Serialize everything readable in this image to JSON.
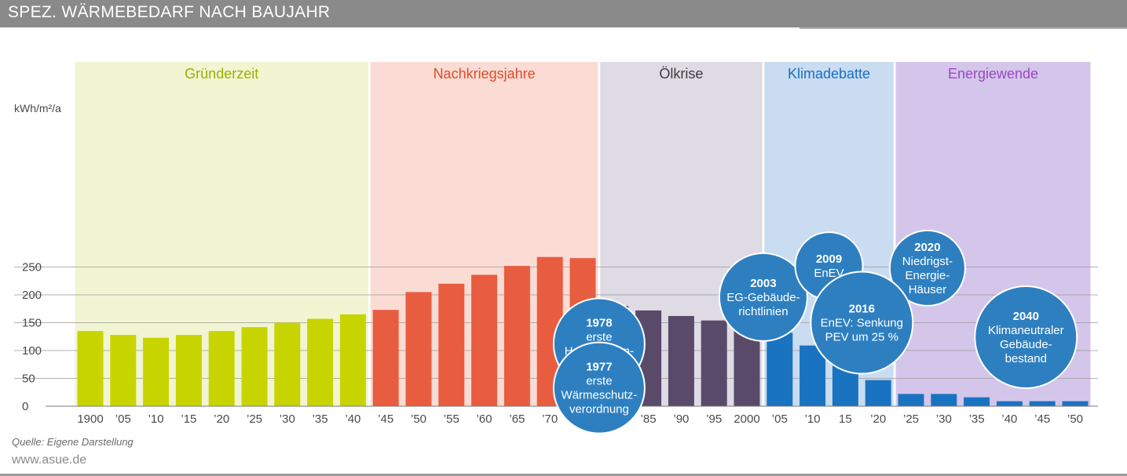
{
  "header": {
    "title": "SPEZ. WÄRMEBEDARF NACH BAUJAHR"
  },
  "chart_data": {
    "type": "bar",
    "title": "SPEZ. WÄRMEBEDARF NACH BAUJAHR",
    "ylabel": "kWh/m²/a",
    "xlabel": "",
    "ylim": [
      0,
      270
    ],
    "yticks": [
      0,
      50,
      100,
      150,
      200,
      250
    ],
    "grid": true,
    "categories": [
      "1900",
      "’05",
      "’10",
      "’15",
      "’20",
      "’25",
      "’30",
      "’35",
      "’40",
      "’45",
      "’50",
      "’55",
      "’60",
      "’65",
      "’70",
      "’75",
      "’80",
      "’85",
      "’90",
      "’95",
      "2000",
      "’05",
      "’10",
      "15",
      "’20",
      "’25",
      "’30",
      "’35",
      "’40",
      "’45",
      "’50"
    ],
    "values": [
      135,
      128,
      123,
      128,
      135,
      142,
      150,
      157,
      165,
      173,
      205,
      220,
      236,
      252,
      268,
      266,
      180,
      172,
      162,
      154,
      148,
      132,
      109,
      80,
      47,
      22,
      22,
      16,
      9,
      9,
      9
    ],
    "bar_colors": [
      "#c8d400",
      "#c8d400",
      "#c8d400",
      "#c8d400",
      "#c8d400",
      "#c8d400",
      "#c8d400",
      "#c8d400",
      "#c8d400",
      "#e85d40",
      "#e85d40",
      "#e85d40",
      "#e85d40",
      "#e85d40",
      "#e85d40",
      "#e85d40",
      "#5a4a6a",
      "#5a4a6a",
      "#5a4a6a",
      "#5a4a6a",
      "#5a4a6a",
      "#1a73c0",
      "#1a73c0",
      "#1a73c0",
      "#1a73c0",
      "#1a73c0",
      "#1a73c0",
      "#1a73c0",
      "#1a73c0",
      "#1a73c0",
      "#1a73c0"
    ],
    "periods": [
      {
        "label": "Gründerzeit",
        "from": 0,
        "to": 8,
        "bg": "#f1f5d2",
        "text_color": "#9ab000"
      },
      {
        "label": "Nachkriegsjahre",
        "from": 9,
        "to": 15,
        "bg": "#fbdcd4",
        "text_color": "#e04a2c"
      },
      {
        "label": "Ölkrise",
        "from": 16,
        "to": 20,
        "bg": "#dedbe4",
        "text_color": "#3c3c3c"
      },
      {
        "label": "Klimadebatte",
        "from": 21,
        "to": 24,
        "bg": "#c9dcf1",
        "text_color": "#1a6fc0"
      },
      {
        "label": "Energiewende",
        "from": 25,
        "to": 30,
        "bg": "#d4c6ea",
        "text_color": "#9a48c0"
      }
    ],
    "annotations": [
      {
        "year": "1978",
        "lines": [
          "erste",
          "Heizanlagen-",
          "verordnung"
        ],
        "category_index": 15.5,
        "value": 112,
        "r": 58
      },
      {
        "year": "1977",
        "lines": [
          "erste",
          "Wärmeschutz-",
          "verordnung"
        ],
        "category_index": 15.5,
        "value": 33,
        "r": 58
      },
      {
        "year": "2003",
        "lines": [
          "EG-Gebäude-",
          "richtlinien"
        ],
        "category_index": 20.5,
        "value": 196,
        "r": 56
      },
      {
        "year": "2009",
        "lines": [
          "EnEV"
        ],
        "category_index": 22.5,
        "value": 252,
        "r": 43
      },
      {
        "year": "2020",
        "lines": [
          "Niedrigst-",
          "Energie-",
          "Häuser"
        ],
        "category_index": 25.5,
        "value": 248,
        "r": 48
      },
      {
        "year": "2016",
        "lines": [
          "EnEV: Senkung",
          "PEV um 25 %"
        ],
        "category_index": 23.5,
        "value": 150,
        "r": 65
      },
      {
        "year": "2040",
        "lines": [
          "Klimaneutraler",
          "Gebäude-",
          "bestand"
        ],
        "category_index": 28.5,
        "value": 124,
        "r": 65
      }
    ],
    "annotation_color": "#2e7fc0"
  },
  "footer": {
    "source": "Quelle: Eigene Darstellung",
    "website": "www.asue.de"
  }
}
